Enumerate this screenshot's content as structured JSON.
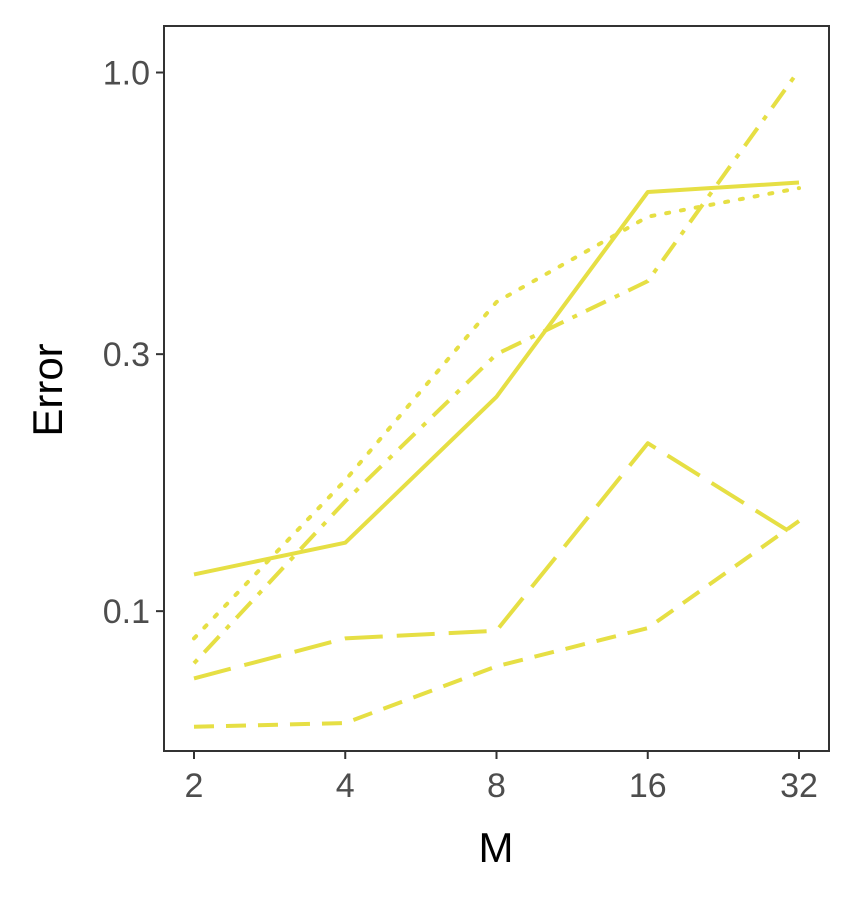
{
  "chart_data": {
    "type": "line",
    "xlabel": "M",
    "ylabel": "Error",
    "x_scale": "log2",
    "y_scale": "log10",
    "x": [
      2,
      4,
      8,
      16,
      32
    ],
    "x_tick_labels": [
      "2",
      "4",
      "8",
      "16",
      "32"
    ],
    "y_ticks": [
      0.1,
      0.3,
      1.0
    ],
    "y_tick_labels": [
      "0.1",
      "0.3",
      "1.0"
    ],
    "ylim": [
      0.055,
      1.22
    ],
    "grid": false,
    "line_color": "#e6df44",
    "series": [
      {
        "style": "solid",
        "values": [
          0.117,
          0.134,
          0.25,
          0.6,
          0.625
        ]
      },
      {
        "style": "dotted",
        "values": [
          0.089,
          0.175,
          0.375,
          0.54,
          0.61
        ]
      },
      {
        "style": "dashdot",
        "values": [
          0.08,
          0.16,
          0.3,
          0.41,
          1.01
        ]
      },
      {
        "style": "longdash",
        "values": [
          0.075,
          0.089,
          0.092,
          0.205,
          0.137
        ]
      },
      {
        "style": "dashed",
        "values": [
          0.061,
          0.062,
          0.079,
          0.093,
          0.147
        ]
      }
    ]
  }
}
